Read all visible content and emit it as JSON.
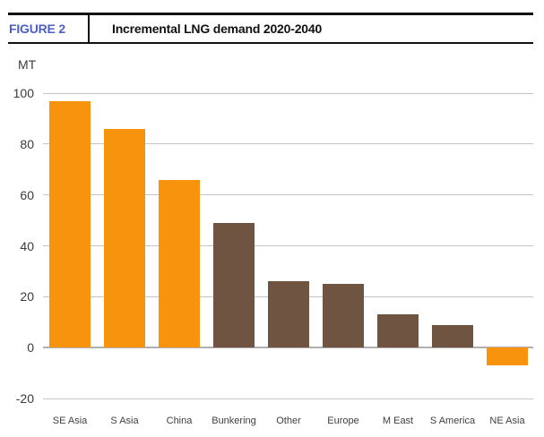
{
  "header": {
    "figure_label": "FIGURE 2",
    "title": "Incremental LNG demand 2020-2040"
  },
  "chart_data": {
    "type": "bar",
    "title": "Incremental LNG demand 2020-2040",
    "categories": [
      "SE Asia",
      "S Asia",
      "China",
      "Bunkering",
      "Other",
      "Europe",
      "M East",
      "S America",
      "NE Asia"
    ],
    "values": [
      97,
      86,
      66,
      49,
      26,
      25,
      13,
      9,
      -7
    ],
    "bar_colors": [
      "#F8930D",
      "#F8930D",
      "#F8930D",
      "#6F5442",
      "#6F5442",
      "#6F5442",
      "#6F5442",
      "#6F5442",
      "#F8930D"
    ],
    "xlabel": "",
    "ylabel": "MT",
    "ylim": [
      -20,
      100
    ],
    "ytick_step": 20,
    "yticks": [
      100,
      80,
      60,
      40,
      20,
      0,
      -20
    ],
    "grid": true,
    "legend": false
  },
  "colors": {
    "series_orange": "#F8930D",
    "series_brown": "#6F5442",
    "figure_label_blue": "#4D5EC4",
    "gridline": "#C5C5C5",
    "axis_text": "#3B3B3B",
    "header_rule": "#121212"
  }
}
